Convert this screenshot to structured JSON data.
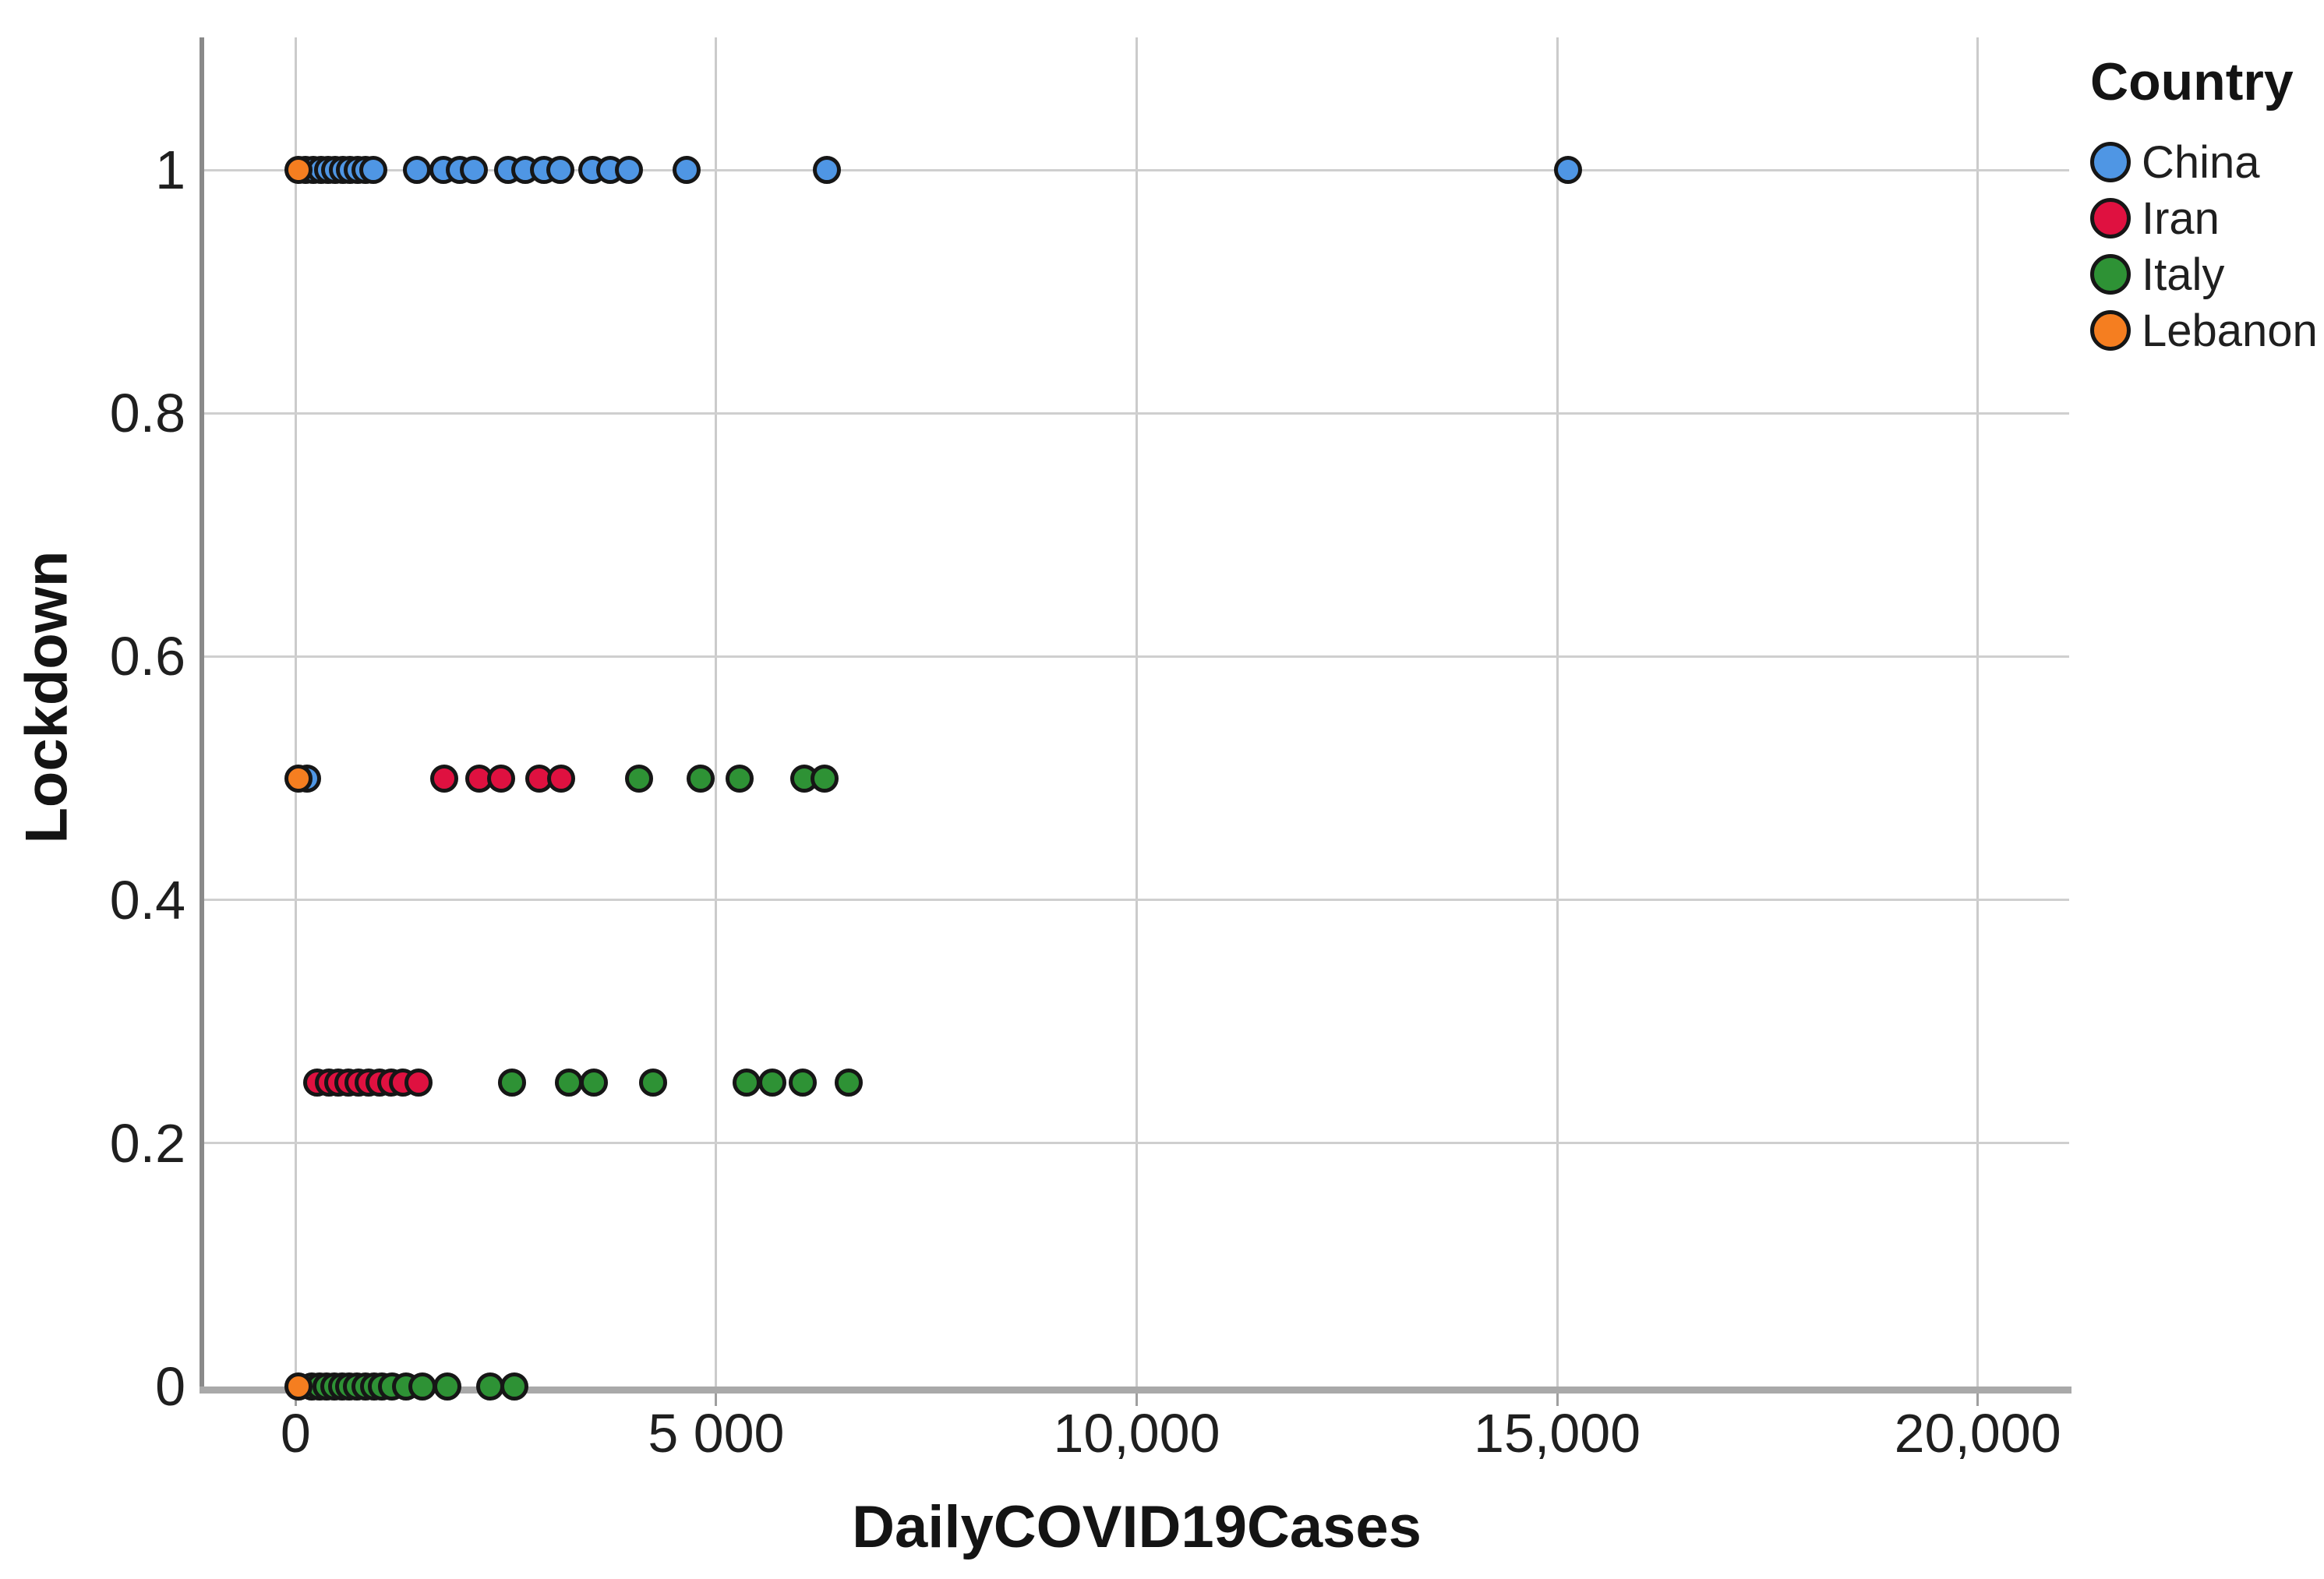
{
  "chart_data": {
    "type": "scatter",
    "title": "",
    "xlabel": "DailyCOVID19Cases",
    "ylabel": "Lockdown",
    "legend_title": "Country",
    "legend_position": "top-right",
    "grid": true,
    "xlim": [
      -1115,
      21115
    ],
    "ylim": [
      -0.0045,
      1.109
    ],
    "x_ticks": [
      {
        "label": "0",
        "value": 0
      },
      {
        "label": "5 000",
        "value": 5000
      },
      {
        "label": "10,000",
        "value": 10000
      },
      {
        "label": "15,000",
        "value": 15000
      },
      {
        "label": "20,000",
        "value": 20000
      }
    ],
    "y_ticks": [
      {
        "label": "1",
        "value": 1
      },
      {
        "label": "0.8",
        "value": 0.8
      },
      {
        "label": "0.6",
        "value": 0.6
      },
      {
        "label": "0.4",
        "value": 0.4
      },
      {
        "label": "0.2",
        "value": 0.2
      },
      {
        "label": "0",
        "value": 0
      }
    ],
    "series": [
      {
        "name": "China",
        "color": "#4F96E4",
        "points": [
          [
            120,
            1
          ],
          [
            210,
            1
          ],
          [
            300,
            1
          ],
          [
            390,
            1
          ],
          [
            470,
            1
          ],
          [
            560,
            1
          ],
          [
            650,
            1
          ],
          [
            740,
            1
          ],
          [
            830,
            1
          ],
          [
            920,
            1
          ],
          [
            1440,
            1
          ],
          [
            1760,
            1
          ],
          [
            1950,
            1
          ],
          [
            2115,
            1
          ],
          [
            2530,
            1
          ],
          [
            2735,
            1
          ],
          [
            2950,
            1
          ],
          [
            3150,
            1
          ],
          [
            3525,
            1
          ],
          [
            3740,
            1
          ],
          [
            3960,
            1
          ],
          [
            4650,
            1
          ],
          [
            6320,
            1
          ],
          [
            15130,
            1
          ],
          [
            140,
            0.5
          ]
        ]
      },
      {
        "name": "Iran",
        "color": "#DF1140",
        "points": [
          [
            1770,
            0.5
          ],
          [
            2180,
            0.5
          ],
          [
            2440,
            0.5
          ],
          [
            2900,
            0.5
          ],
          [
            3160,
            0.5
          ],
          [
            260,
            0.25
          ],
          [
            400,
            0.25
          ],
          [
            510,
            0.25
          ],
          [
            630,
            0.25
          ],
          [
            750,
            0.25
          ],
          [
            870,
            0.25
          ],
          [
            1000,
            0.25
          ],
          [
            1140,
            0.25
          ],
          [
            1280,
            0.25
          ],
          [
            1460,
            0.25
          ]
        ]
      },
      {
        "name": "Italy",
        "color": "#2E9235",
        "points": [
          [
            4080,
            0.5
          ],
          [
            4820,
            0.5
          ],
          [
            5280,
            0.5
          ],
          [
            6050,
            0.5
          ],
          [
            6290,
            0.5
          ],
          [
            2570,
            0.25
          ],
          [
            3250,
            0.25
          ],
          [
            3550,
            0.25
          ],
          [
            4250,
            0.25
          ],
          [
            5360,
            0.25
          ],
          [
            5670,
            0.25
          ],
          [
            6030,
            0.25
          ],
          [
            6580,
            0.25
          ],
          [
            190,
            0
          ],
          [
            280,
            0
          ],
          [
            370,
            0
          ],
          [
            460,
            0
          ],
          [
            550,
            0
          ],
          [
            640,
            0
          ],
          [
            730,
            0
          ],
          [
            830,
            0
          ],
          [
            930,
            0
          ],
          [
            1030,
            0
          ],
          [
            1150,
            0
          ],
          [
            1310,
            0
          ],
          [
            1510,
            0
          ],
          [
            1800,
            0
          ],
          [
            2310,
            0
          ],
          [
            2600,
            0
          ]
        ]
      },
      {
        "name": "Lebanon",
        "color": "#F57E20",
        "points": [
          [
            30,
            1
          ],
          [
            30,
            0.5
          ],
          [
            30,
            0
          ]
        ]
      }
    ]
  }
}
